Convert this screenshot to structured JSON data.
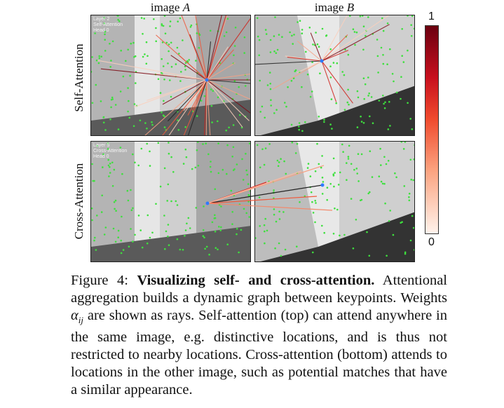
{
  "figure": {
    "col_titles": [
      "image A",
      "image B"
    ],
    "col_title_prefix": "image ",
    "col_title_letters": [
      "A",
      "B"
    ],
    "row_labels": [
      "Self-Attention",
      "Cross-Attention"
    ],
    "overlays": {
      "self": [
        "Layer 2",
        "Self-Attention",
        "Head 0"
      ],
      "cross": [
        "Layer 5",
        "Cross-Attention",
        "Head 0"
      ]
    },
    "colorbar": {
      "max_label": "1",
      "min_label": "0",
      "low_color": "#fff3ec",
      "high_color": "#6b0010"
    },
    "keypoint_color": "#3ee03e",
    "query_color": "#2f7bff"
  },
  "caption": {
    "prefix": "Figure 4: ",
    "bold": "Visualizing self- and cross-attention.",
    "part1": " Attentional aggregation builds a dynamic graph between keypoints. Weights ",
    "math_base": "α",
    "math_sub": "ij",
    "part2": " are shown as rays. Self-attention (top) can attend anywhere in the same image, e.g. distinctive locations, and is thus not restricted to nearby locations. Cross-attention (bottom) attends to locations in the other image, such as potential matches that have a similar appearance."
  }
}
